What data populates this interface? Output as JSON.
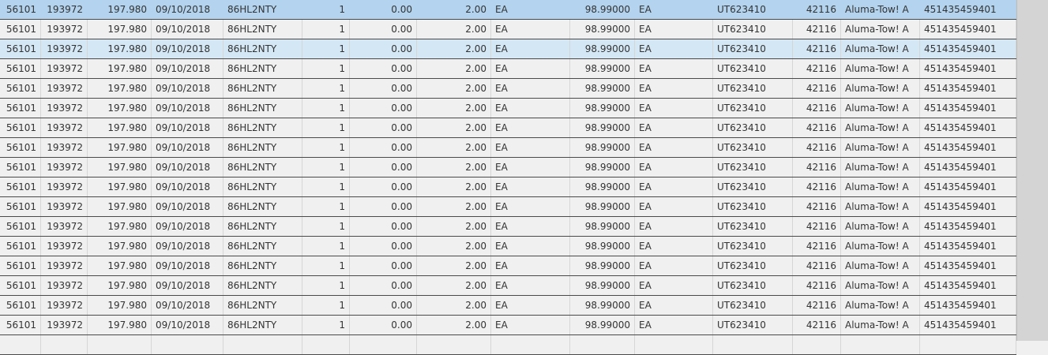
{
  "grid": {
    "selected_row": 0,
    "hover_row": 2,
    "colors": {
      "selected": "#b3d3ee",
      "hover": "#d4e7f5",
      "row": "#f0f0f0"
    },
    "rows": [
      [
        "56101",
        "193972",
        "197.980",
        "09/10/2018",
        "86HL2NTY",
        "1",
        "0.00",
        "2.00",
        "EA",
        "98.99000",
        "EA",
        "UT623410",
        "42116",
        "Aluma-Tow! A",
        "451435459401"
      ],
      [
        "56101",
        "193972",
        "197.980",
        "09/10/2018",
        "86HL2NTY",
        "1",
        "0.00",
        "2.00",
        "EA",
        "98.99000",
        "EA",
        "UT623410",
        "42116",
        "Aluma-Tow! A",
        "451435459401"
      ],
      [
        "56101",
        "193972",
        "197.980",
        "09/10/2018",
        "86HL2NTY",
        "1",
        "0.00",
        "2.00",
        "EA",
        "98.99000",
        "EA",
        "UT623410",
        "42116",
        "Aluma-Tow! A",
        "451435459401"
      ],
      [
        "56101",
        "193972",
        "197.980",
        "09/10/2018",
        "86HL2NTY",
        "1",
        "0.00",
        "2.00",
        "EA",
        "98.99000",
        "EA",
        "UT623410",
        "42116",
        "Aluma-Tow! A",
        "451435459401"
      ],
      [
        "56101",
        "193972",
        "197.980",
        "09/10/2018",
        "86HL2NTY",
        "1",
        "0.00",
        "2.00",
        "EA",
        "98.99000",
        "EA",
        "UT623410",
        "42116",
        "Aluma-Tow! A",
        "451435459401"
      ],
      [
        "56101",
        "193972",
        "197.980",
        "09/10/2018",
        "86HL2NTY",
        "1",
        "0.00",
        "2.00",
        "EA",
        "98.99000",
        "EA",
        "UT623410",
        "42116",
        "Aluma-Tow! A",
        "451435459401"
      ],
      [
        "56101",
        "193972",
        "197.980",
        "09/10/2018",
        "86HL2NTY",
        "1",
        "0.00",
        "2.00",
        "EA",
        "98.99000",
        "EA",
        "UT623410",
        "42116",
        "Aluma-Tow! A",
        "451435459401"
      ],
      [
        "56101",
        "193972",
        "197.980",
        "09/10/2018",
        "86HL2NTY",
        "1",
        "0.00",
        "2.00",
        "EA",
        "98.99000",
        "EA",
        "UT623410",
        "42116",
        "Aluma-Tow! A",
        "451435459401"
      ],
      [
        "56101",
        "193972",
        "197.980",
        "09/10/2018",
        "86HL2NTY",
        "1",
        "0.00",
        "2.00",
        "EA",
        "98.99000",
        "EA",
        "UT623410",
        "42116",
        "Aluma-Tow! A",
        "451435459401"
      ],
      [
        "56101",
        "193972",
        "197.980",
        "09/10/2018",
        "86HL2NTY",
        "1",
        "0.00",
        "2.00",
        "EA",
        "98.99000",
        "EA",
        "UT623410",
        "42116",
        "Aluma-Tow! A",
        "451435459401"
      ],
      [
        "56101",
        "193972",
        "197.980",
        "09/10/2018",
        "86HL2NTY",
        "1",
        "0.00",
        "2.00",
        "EA",
        "98.99000",
        "EA",
        "UT623410",
        "42116",
        "Aluma-Tow! A",
        "451435459401"
      ],
      [
        "56101",
        "193972",
        "197.980",
        "09/10/2018",
        "86HL2NTY",
        "1",
        "0.00",
        "2.00",
        "EA",
        "98.99000",
        "EA",
        "UT623410",
        "42116",
        "Aluma-Tow! A",
        "451435459401"
      ],
      [
        "56101",
        "193972",
        "197.980",
        "09/10/2018",
        "86HL2NTY",
        "1",
        "0.00",
        "2.00",
        "EA",
        "98.99000",
        "EA",
        "UT623410",
        "42116",
        "Aluma-Tow! A",
        "451435459401"
      ],
      [
        "56101",
        "193972",
        "197.980",
        "09/10/2018",
        "86HL2NTY",
        "1",
        "0.00",
        "2.00",
        "EA",
        "98.99000",
        "EA",
        "UT623410",
        "42116",
        "Aluma-Tow! A",
        "451435459401"
      ],
      [
        "56101",
        "193972",
        "197.980",
        "09/10/2018",
        "86HL2NTY",
        "1",
        "0.00",
        "2.00",
        "EA",
        "98.99000",
        "EA",
        "UT623410",
        "42116",
        "Aluma-Tow! A",
        "451435459401"
      ],
      [
        "56101",
        "193972",
        "197.980",
        "09/10/2018",
        "86HL2NTY",
        "1",
        "0.00",
        "2.00",
        "EA",
        "98.99000",
        "EA",
        "UT623410",
        "42116",
        "Aluma-Tow! A",
        "451435459401"
      ],
      [
        "56101",
        "193972",
        "197.980",
        "09/10/2018",
        "86HL2NTY",
        "1",
        "0.00",
        "2.00",
        "EA",
        "98.99000",
        "EA",
        "UT623410",
        "42116",
        "Aluma-Tow! A",
        "451435459401"
      ],
      [
        "",
        "",
        "",
        "",
        "",
        "",
        "",
        "",
        "",
        "",
        "",
        "",
        "",
        "",
        ""
      ]
    ]
  }
}
